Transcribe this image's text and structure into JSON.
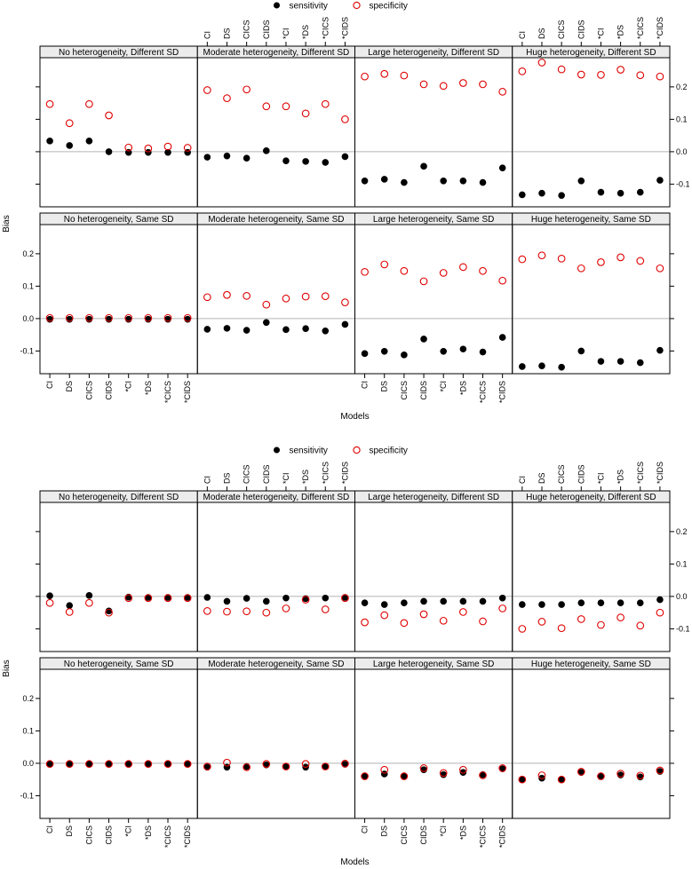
{
  "chart_data": [
    {
      "type": "scatter",
      "xlabel": "Models",
      "ylabel": "Bias",
      "ylim": [
        -0.17,
        0.29
      ],
      "yticks": [
        -0.1,
        0.0,
        0.1,
        0.2
      ],
      "ytick_labels": [
        "-0.1",
        "0.0",
        "0.1",
        "0.2"
      ],
      "reference_line": 0.0,
      "legend": {
        "placement": "top",
        "entries": [
          {
            "name": "sensitivity",
            "marker": "filled-circle",
            "color": "#000000"
          },
          {
            "name": "specificity",
            "marker": "open-circle",
            "color": "#e00000"
          }
        ]
      },
      "models": [
        "CI",
        "DS",
        "CICS",
        "CIDS",
        "*CI",
        "*DS",
        "*CICS",
        "*CIDS"
      ],
      "panels": [
        {
          "title": "No heterogeneity, Different SD",
          "row": 0,
          "col": 0,
          "sensitivity": [
            0.033,
            0.019,
            0.033,
            0.0,
            -0.002,
            -0.002,
            -0.002,
            -0.002
          ],
          "specificity": [
            0.147,
            0.088,
            0.147,
            0.112,
            0.013,
            0.01,
            0.016,
            0.012
          ]
        },
        {
          "title": "Moderate heterogeneity, Different SD",
          "row": 0,
          "col": 1,
          "sensitivity": [
            -0.017,
            -0.013,
            -0.02,
            0.003,
            -0.028,
            -0.03,
            -0.033,
            -0.015
          ],
          "specificity": [
            0.19,
            0.165,
            0.192,
            0.14,
            0.14,
            0.118,
            0.147,
            0.1
          ]
        },
        {
          "title": "Large heterogeneity, Different SD",
          "row": 0,
          "col": 2,
          "sensitivity": [
            -0.09,
            -0.085,
            -0.095,
            -0.045,
            -0.09,
            -0.09,
            -0.095,
            -0.05
          ],
          "specificity": [
            0.232,
            0.24,
            0.235,
            0.208,
            0.203,
            0.212,
            0.208,
            0.185
          ]
        },
        {
          "title": "Huge heterogeneity, Different SD",
          "row": 0,
          "col": 3,
          "sensitivity": [
            -0.133,
            -0.128,
            -0.135,
            -0.09,
            -0.125,
            -0.128,
            -0.125,
            -0.088
          ],
          "specificity": [
            0.248,
            0.275,
            0.254,
            0.238,
            0.237,
            0.253,
            0.236,
            0.232
          ]
        },
        {
          "title": "No heterogeneity, Same SD",
          "row": 1,
          "col": 0,
          "sensitivity": [
            -0.002,
            -0.002,
            -0.002,
            -0.002,
            -0.002,
            -0.002,
            -0.002,
            -0.002
          ],
          "specificity": [
            0.002,
            0.002,
            0.002,
            0.002,
            0.002,
            0.002,
            0.002,
            0.002
          ]
        },
        {
          "title": "Moderate heterogeneity, Same SD",
          "row": 1,
          "col": 1,
          "sensitivity": [
            -0.033,
            -0.03,
            -0.036,
            -0.012,
            -0.034,
            -0.031,
            -0.038,
            -0.018
          ],
          "specificity": [
            0.066,
            0.073,
            0.07,
            0.043,
            0.062,
            0.068,
            0.069,
            0.05
          ]
        },
        {
          "title": "Large heterogeneity, Same SD",
          "row": 1,
          "col": 2,
          "sensitivity": [
            -0.108,
            -0.101,
            -0.112,
            -0.063,
            -0.101,
            -0.094,
            -0.103,
            -0.058
          ],
          "specificity": [
            0.144,
            0.167,
            0.147,
            0.115,
            0.141,
            0.159,
            0.147,
            0.117
          ]
        },
        {
          "title": "Huge heterogeneity, Same SD",
          "row": 1,
          "col": 3,
          "sensitivity": [
            -0.148,
            -0.146,
            -0.15,
            -0.1,
            -0.132,
            -0.132,
            -0.136,
            -0.098
          ],
          "specificity": [
            0.183,
            0.195,
            0.185,
            0.155,
            0.174,
            0.189,
            0.178,
            0.155
          ]
        }
      ]
    },
    {
      "type": "scatter",
      "xlabel": "Models",
      "ylabel": "Bias",
      "ylim": [
        -0.17,
        0.29
      ],
      "yticks": [
        -0.1,
        0.0,
        0.1,
        0.2
      ],
      "ytick_labels": [
        "-0.1",
        "0.0",
        "0.1",
        "0.2"
      ],
      "reference_line": 0.0,
      "legend": {
        "placement": "top",
        "entries": [
          {
            "name": "sensitivity",
            "marker": "filled-circle",
            "color": "#000000"
          },
          {
            "name": "specificity",
            "marker": "open-circle",
            "color": "#e00000"
          }
        ]
      },
      "models": [
        "CI",
        "DS",
        "CICS",
        "CIDS",
        "*CI",
        "*DS",
        "*CICS",
        "*CIDS"
      ],
      "panels": [
        {
          "title": "No heterogeneity, Different SD",
          "row": 0,
          "col": 0,
          "sensitivity": [
            0.002,
            -0.028,
            0.003,
            -0.045,
            -0.002,
            -0.003,
            -0.003,
            -0.003
          ],
          "specificity": [
            -0.02,
            -0.048,
            -0.02,
            -0.05,
            -0.005,
            -0.005,
            -0.005,
            -0.005
          ]
        },
        {
          "title": "Moderate heterogeneity, Different SD",
          "row": 0,
          "col": 1,
          "sensitivity": [
            -0.003,
            -0.015,
            -0.006,
            -0.015,
            -0.005,
            -0.007,
            -0.005,
            -0.003
          ],
          "specificity": [
            -0.045,
            -0.047,
            -0.046,
            -0.05,
            -0.037,
            -0.01,
            -0.04,
            -0.005
          ]
        },
        {
          "title": "Large heterogeneity, Different SD",
          "row": 0,
          "col": 2,
          "sensitivity": [
            -0.02,
            -0.025,
            -0.02,
            -0.015,
            -0.015,
            -0.015,
            -0.015,
            -0.005
          ],
          "specificity": [
            -0.08,
            -0.058,
            -0.082,
            -0.055,
            -0.075,
            -0.048,
            -0.077,
            -0.037
          ]
        },
        {
          "title": "Huge heterogeneity, Different SD",
          "row": 0,
          "col": 3,
          "sensitivity": [
            -0.025,
            -0.025,
            -0.025,
            -0.02,
            -0.02,
            -0.02,
            -0.02,
            -0.01
          ],
          "specificity": [
            -0.1,
            -0.078,
            -0.098,
            -0.07,
            -0.088,
            -0.065,
            -0.09,
            -0.05
          ]
        },
        {
          "title": "No heterogeneity, Same SD",
          "row": 1,
          "col": 0,
          "sensitivity": [
            -0.002,
            -0.002,
            -0.002,
            -0.002,
            -0.002,
            -0.002,
            -0.002,
            -0.002
          ],
          "specificity": [
            -0.002,
            -0.002,
            -0.002,
            -0.002,
            -0.002,
            -0.002,
            -0.002,
            -0.002
          ]
        },
        {
          "title": "Moderate heterogeneity, Same SD",
          "row": 1,
          "col": 1,
          "sensitivity": [
            -0.012,
            -0.012,
            -0.01,
            -0.005,
            -0.01,
            -0.012,
            -0.01,
            -0.003
          ],
          "specificity": [
            -0.01,
            0.002,
            -0.012,
            -0.002,
            -0.01,
            -0.002,
            -0.01,
            -0.001
          ]
        },
        {
          "title": "Large heterogeneity, Same SD",
          "row": 1,
          "col": 2,
          "sensitivity": [
            -0.04,
            -0.033,
            -0.04,
            -0.02,
            -0.035,
            -0.028,
            -0.035,
            -0.017
          ],
          "specificity": [
            -0.04,
            -0.02,
            -0.04,
            -0.015,
            -0.03,
            -0.02,
            -0.037,
            -0.015
          ]
        },
        {
          "title": "Huge heterogeneity, Same SD",
          "row": 1,
          "col": 3,
          "sensitivity": [
            -0.05,
            -0.046,
            -0.05,
            -0.028,
            -0.04,
            -0.036,
            -0.042,
            -0.025
          ],
          "specificity": [
            -0.05,
            -0.037,
            -0.05,
            -0.026,
            -0.04,
            -0.032,
            -0.038,
            -0.022
          ]
        }
      ]
    }
  ]
}
